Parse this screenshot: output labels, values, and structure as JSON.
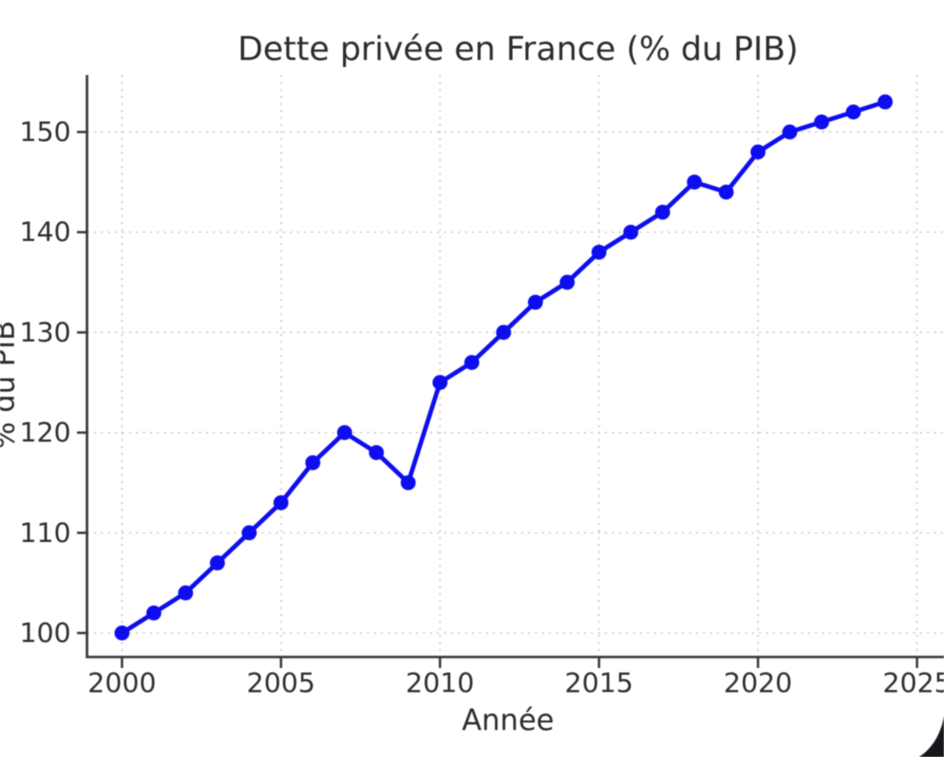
{
  "chart_data": {
    "type": "line",
    "title": "Dette privée en France (% du PIB)",
    "xlabel": "Année",
    "ylabel": "% du PIB",
    "x": [
      2000,
      2001,
      2002,
      2003,
      2004,
      2005,
      2006,
      2007,
      2008,
      2009,
      2010,
      2011,
      2012,
      2013,
      2014,
      2015,
      2016,
      2017,
      2018,
      2019,
      2020,
      2021,
      2022,
      2023,
      2024
    ],
    "values": [
      100,
      102,
      104,
      107,
      110,
      113,
      117,
      120,
      118,
      115,
      125,
      127,
      130,
      133,
      135,
      138,
      140,
      142,
      145,
      144,
      148,
      150,
      151,
      152,
      153
    ],
    "xticks": [
      2000,
      2005,
      2010,
      2015,
      2020,
      2025
    ],
    "yticks": [
      100,
      110,
      120,
      130,
      140,
      150
    ],
    "xlim": [
      1998.9,
      2025.8
    ],
    "ylim": [
      97.6,
      155.8
    ],
    "grid": true,
    "legend": false,
    "line_color": "#0d0df0",
    "marker": "circle",
    "marker_color": "#0d0df0"
  },
  "artifact": {
    "corner_shape_color": "#15171b"
  }
}
